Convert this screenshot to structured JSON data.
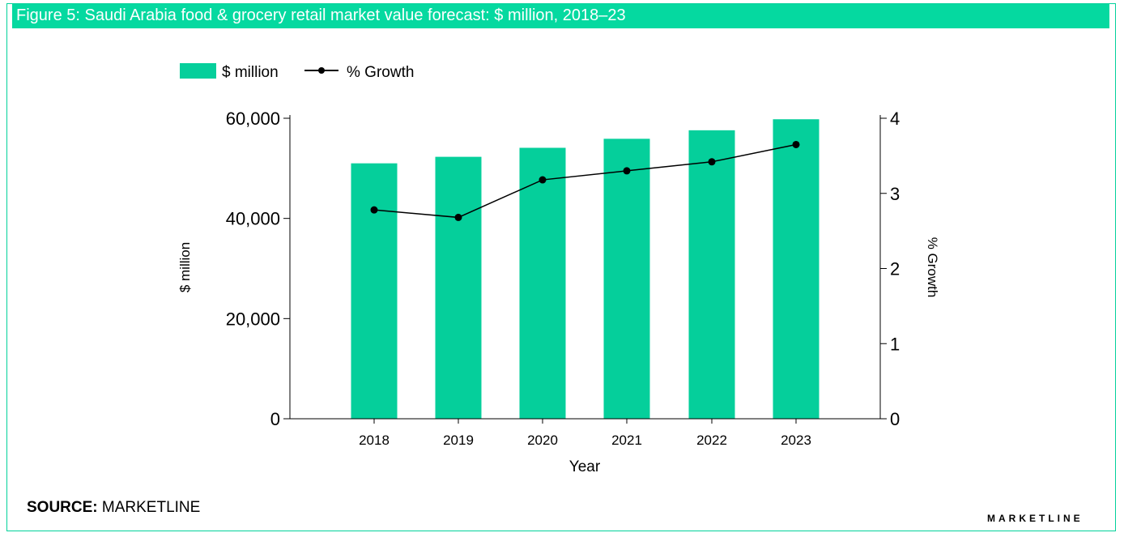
{
  "figure": {
    "title": "Figure 5: Saudi Arabia food & grocery retail market value forecast: $ million, 2018–23",
    "source_label": "SOURCE:",
    "source_value": "MARKETLINE",
    "brand": "MARKETLINE"
  },
  "colors": {
    "bar": "#05cf9b",
    "title_bg": "#05d9a0",
    "line": "#000000"
  },
  "chart_data": {
    "type": "bar",
    "categories": [
      "2018",
      "2019",
      "2020",
      "2021",
      "2022",
      "2023"
    ],
    "series": [
      {
        "name": "$ million",
        "type": "bar",
        "axis": "left",
        "values": [
          51000,
          52300,
          54100,
          55900,
          57600,
          59800
        ]
      },
      {
        "name": "% Growth",
        "type": "line",
        "axis": "right",
        "values": [
          2.78,
          2.68,
          3.18,
          3.3,
          3.42,
          3.65
        ]
      }
    ],
    "xlabel": "Year",
    "ylabel": "$ million",
    "y2label": "% Growth",
    "ylim": [
      0,
      60000
    ],
    "y2lim": [
      0,
      4
    ],
    "yticks": [
      "0",
      "20,000",
      "40,000",
      "60,000"
    ],
    "y2ticks": [
      "0",
      "1",
      "2",
      "3",
      "4"
    ],
    "legend": [
      "$ million",
      "% Growth"
    ],
    "legend_position": "top-left",
    "grid": false
  }
}
